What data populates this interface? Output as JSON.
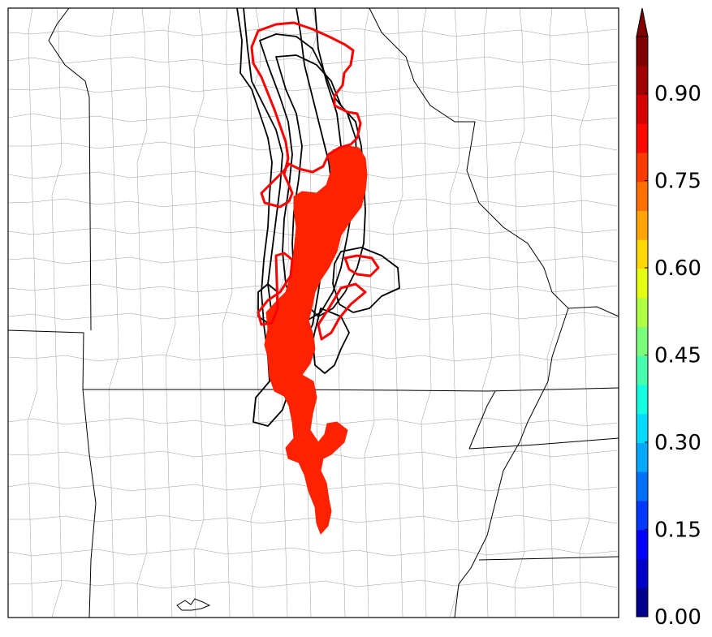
{
  "colorbar": {
    "colors": [
      "#00008f",
      "#0000c8",
      "#0000ff",
      "#0038ff",
      "#0070ff",
      "#00a8ff",
      "#00dcff",
      "#14ffe2",
      "#48ffae",
      "#7cff7a",
      "#b0ff46",
      "#e4ff12",
      "#ffd800",
      "#ffa400",
      "#ff7000",
      "#ff3c00",
      "#ff0800",
      "#d40000",
      "#a00000",
      "#800000"
    ],
    "extend_color": "#800000",
    "ticks": [
      "0.00",
      "0.15",
      "0.30",
      "0.45",
      "0.60",
      "0.75",
      "0.90"
    ]
  },
  "legend_icons": {
    "track": "black-contour",
    "contour": "red-contour",
    "swath": "filled-probability-swath"
  }
}
